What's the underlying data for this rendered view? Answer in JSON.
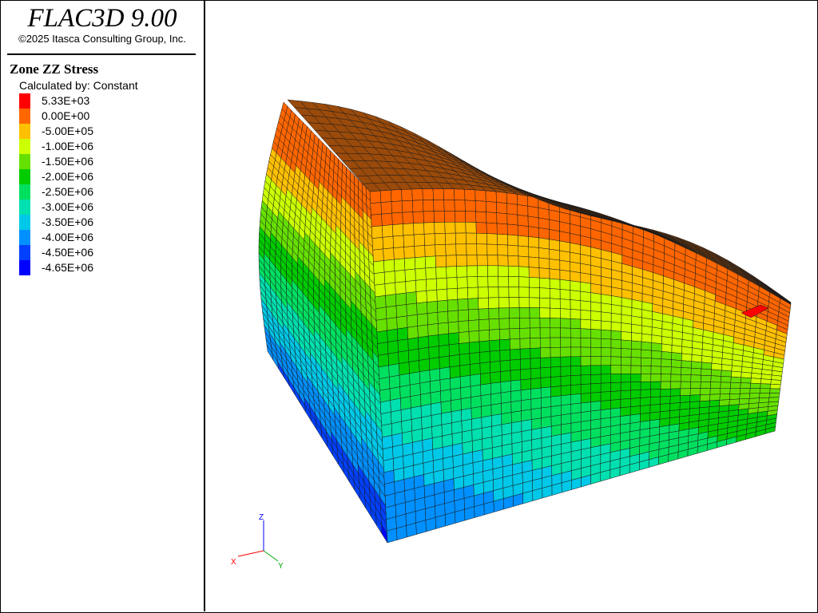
{
  "header": {
    "app_title": "FLAC3D 9.00",
    "copyright": "©2025 Itasca Consulting Group, Inc."
  },
  "legend": {
    "title": "Zone ZZ Stress",
    "calculated_by_label": "Calculated by:",
    "calculated_by_value": "Constant",
    "entries": [
      {
        "label": "5.33E+03",
        "color": "#ff0000"
      },
      {
        "label": "0.00E+00",
        "color": "#ff6600"
      },
      {
        "label": "-5.00E+05",
        "color": "#ffc000"
      },
      {
        "label": "-1.00E+06",
        "color": "#ccff00"
      },
      {
        "label": "-1.50E+06",
        "color": "#66e000"
      },
      {
        "label": "-2.00E+06",
        "color": "#00cc00"
      },
      {
        "label": "-2.50E+06",
        "color": "#00e060"
      },
      {
        "label": "-3.00E+06",
        "color": "#00e0b0"
      },
      {
        "label": "-3.50E+06",
        "color": "#00c8e8"
      },
      {
        "label": "-4.00E+06",
        "color": "#0090ff"
      },
      {
        "label": "-4.50E+06",
        "color": "#0040ff"
      },
      {
        "label": "-4.65E+06",
        "color": "#0000ff"
      }
    ]
  },
  "axes_triad": {
    "x_label": "X",
    "y_label": "Y",
    "z_label": "Z",
    "x_color": "#ff0000",
    "y_color": "#00aa00",
    "z_color": "#0000ff"
  },
  "colors": {
    "top_surface": "#9a4a0a",
    "mesh_lines": "#1a1a1a",
    "frame": "#000000"
  }
}
